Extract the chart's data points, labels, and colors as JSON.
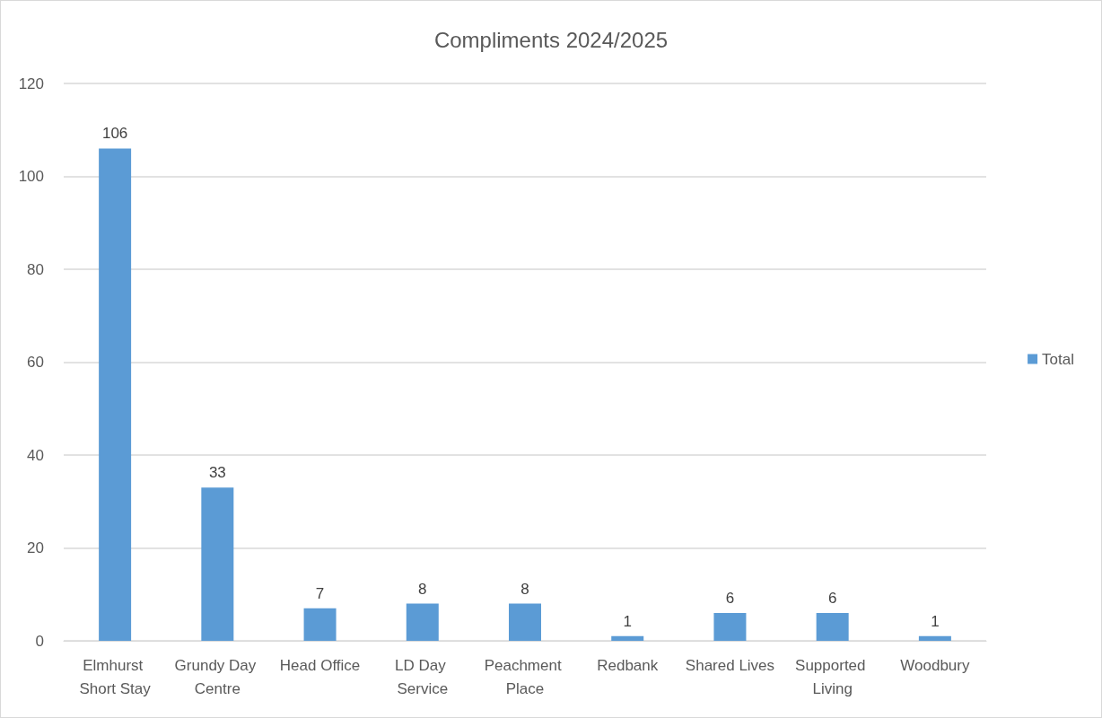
{
  "chart_data": {
    "type": "bar",
    "title": "Compliments 2024/2025",
    "categories": [
      "Elmhurst Short Stay",
      "Grundy Day Centre",
      "Head Office",
      "LD Day Service",
      "Peachment Place",
      "Redbank",
      "Shared Lives",
      "Supported Living",
      "Woodbury"
    ],
    "series": [
      {
        "name": "Total",
        "color": "#5b9bd5",
        "values": [
          106,
          33,
          7,
          8,
          8,
          1,
          6,
          6,
          1
        ]
      }
    ],
    "ylim": [
      0,
      120
    ],
    "yticks": [
      0,
      20,
      40,
      60,
      80,
      100,
      120
    ],
    "grid": "y",
    "legend": "right",
    "data_labels": true
  }
}
